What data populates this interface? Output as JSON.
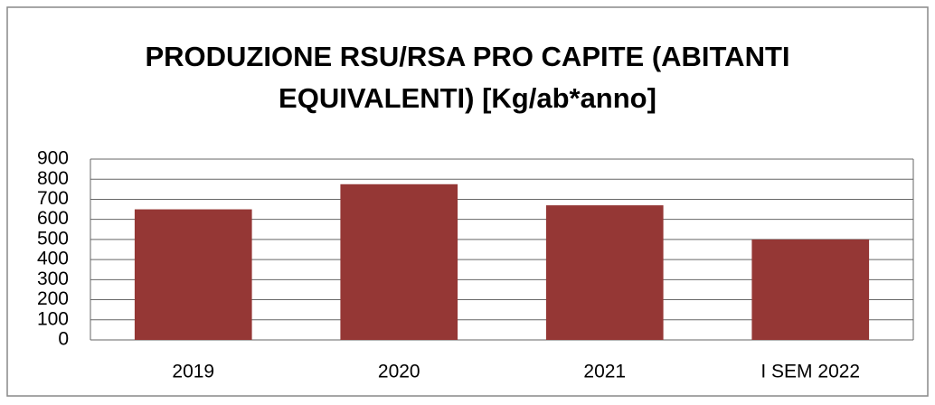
{
  "chart_data": {
    "type": "bar",
    "title": "PRODUZIONE RSU/RSA PRO CAPITE (ABITANTI EQUIVALENTI) [Kg/ab*anno]",
    "categories": [
      "2019",
      "2020",
      "2021",
      "I SEM 2022"
    ],
    "values": [
      650,
      775,
      670,
      500
    ],
    "color": "#953735",
    "ylim": [
      0,
      900
    ],
    "yticks": [
      0,
      100,
      200,
      300,
      400,
      500,
      600,
      700,
      800,
      900
    ],
    "grid": true
  }
}
